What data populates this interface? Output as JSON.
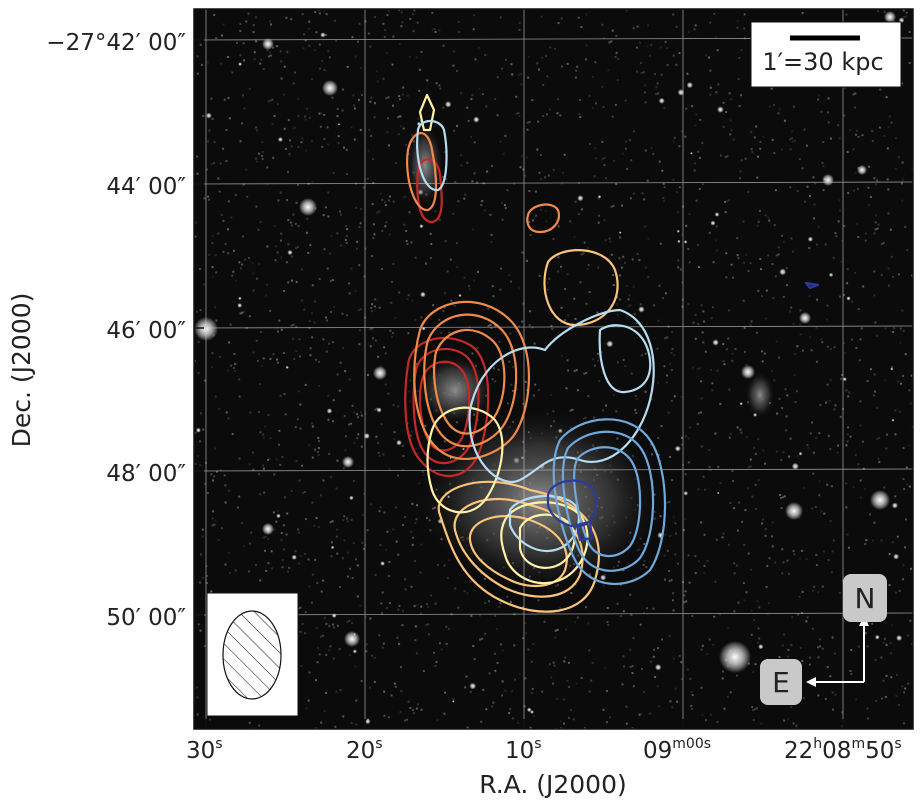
{
  "figure": {
    "top_left_dec": "−27°42′ 00″",
    "y_ticks": [
      "44′ 00″",
      "46′ 00″",
      "48′ 00″",
      "50′ 00″"
    ],
    "x_ticks": [
      "30",
      "20",
      "10",
      "09",
      "22",
      "08",
      "50"
    ],
    "x_tick_suffixes": [
      "s",
      "s",
      "s",
      "m00",
      "h",
      "m",
      "s"
    ],
    "ylabel": "Dec.  (J2000)",
    "xlabel": "R.A. (J2000)",
    "scalebar_label": "1′=30 kpc",
    "compass": {
      "north": "N",
      "east": "E"
    }
  },
  "colors": {
    "background_field": "#0b0b0b",
    "contour_red": "#c62828",
    "contour_orange": "#f08a4b",
    "contour_lightorange": "#fdc47a",
    "contour_cream": "#fff1a8",
    "contour_lightblue": "#b7dcef",
    "contour_blue": "#6fa8dc",
    "contour_darkblue": "#2b3a9b"
  }
}
